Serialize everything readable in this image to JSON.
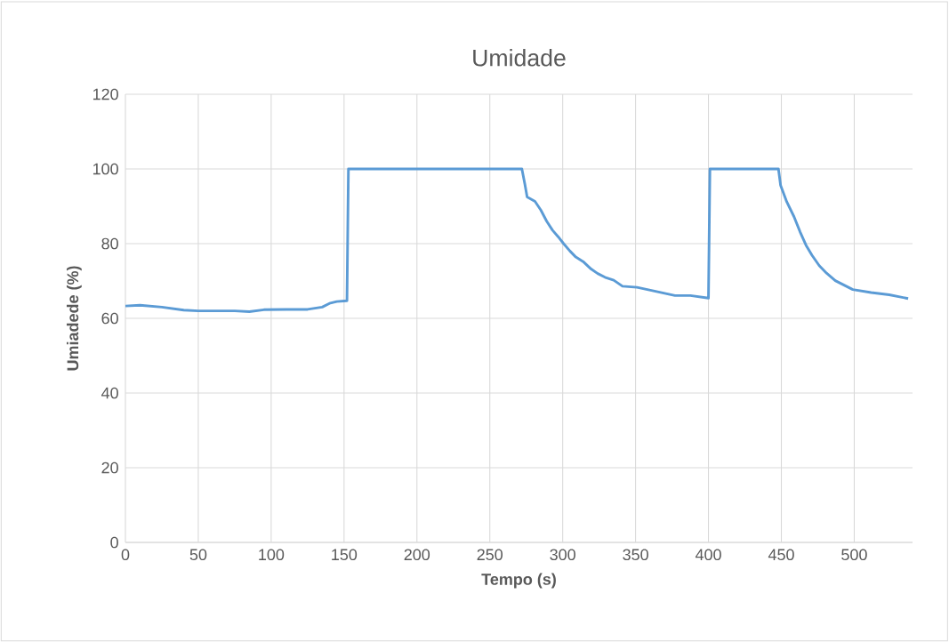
{
  "chart_data": {
    "type": "line",
    "title": "Umidade",
    "xlabel": "Tempo (s)",
    "ylabel": "Umiadede (%)",
    "xlim": [
      0,
      540
    ],
    "xticks": [
      0,
      50,
      100,
      150,
      200,
      250,
      300,
      350,
      400,
      450,
      500
    ],
    "ylim": [
      0,
      120
    ],
    "yticks": [
      0,
      20,
      40,
      60,
      80,
      100,
      120
    ],
    "grid": true,
    "marker": "none",
    "line_style": "solid",
    "series": [
      {
        "color": "#5b9bd5",
        "x": [
          0,
          10,
          25,
          40,
          50,
          75,
          85,
          95,
          110,
          125,
          135,
          140,
          145,
          152,
          153,
          272,
          274,
          275.6,
          281,
          285,
          289,
          293,
          297,
          300.6,
          305,
          309,
          314,
          319.5,
          324,
          329,
          335,
          341,
          351,
          363,
          377,
          387.6,
          400,
          401,
          448,
          449.5,
          453.7,
          458.7,
          462.8,
          466.9,
          471,
          476,
          481,
          487,
          493,
          499,
          511.6,
          524,
          537
        ],
        "values": [
          63.3,
          63.5,
          63,
          62.2,
          62,
          62,
          61.8,
          62.3,
          62.4,
          62.4,
          63,
          64,
          64.5,
          64.7,
          100,
          100,
          96,
          92.5,
          91.3,
          89,
          86,
          83.6,
          81.8,
          80,
          78,
          76.4,
          75.2,
          73.2,
          72,
          71,
          70.2,
          68.6,
          68.3,
          67.3,
          66.1,
          66.1,
          65.4,
          100,
          100,
          95.6,
          91.2,
          87.2,
          83.2,
          79.6,
          76.9,
          74.1,
          72.1,
          70.1,
          68.9,
          67.7,
          66.9,
          66.3,
          65.3
        ]
      }
    ]
  }
}
